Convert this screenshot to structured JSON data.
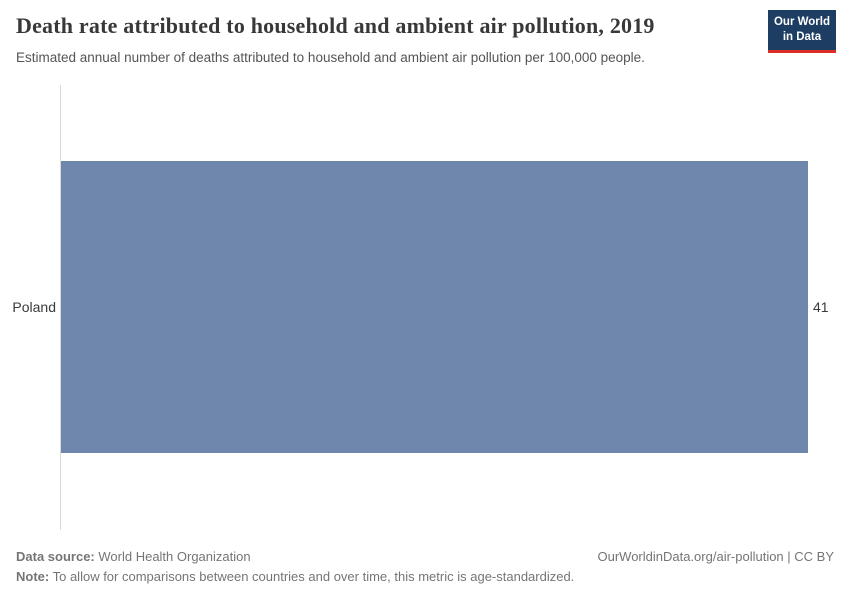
{
  "header": {
    "title": "Death rate attributed to household and ambient air pollution, 2019",
    "subtitle": "Estimated annual number of deaths attributed to household and ambient air pollution per 100,000 people.",
    "logo": {
      "line1": "Our World",
      "line2": "in Data"
    }
  },
  "chart_data": {
    "type": "bar",
    "orientation": "horizontal",
    "title": "Death rate attributed to household and ambient air pollution, 2019",
    "subtitle": "Estimated annual number of deaths attributed to household and ambient air pollution per 100,000 people.",
    "categories": [
      "Poland"
    ],
    "values": [
      41
    ],
    "xlim": [
      0,
      41
    ],
    "grid": false,
    "legend": "none"
  },
  "footer": {
    "source_label": "Data source:",
    "source_text": "World Health Organization",
    "note_label": "Note:",
    "note_text": "To allow for comparisons between countries and over time, this metric is age-standardized.",
    "attribution": "OurWorldinData.org/air-pollution | CC BY"
  },
  "colors": {
    "bar": "#6f87ad",
    "logo-bg": "#1d3d63",
    "logo-accent": "#dc2e27",
    "axis": "#d9d9d9",
    "title-text": "#383838",
    "subtitle-text": "#555555",
    "label-text": "#3a3a3a",
    "footer-text": "#757575"
  }
}
